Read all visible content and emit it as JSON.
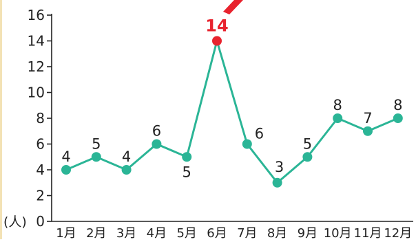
{
  "chart_data": {
    "type": "line",
    "categories": [
      "1月",
      "2月",
      "3月",
      "4月",
      "5月",
      "6月",
      "7月",
      "8月",
      "9月",
      "10月",
      "11月",
      "12月"
    ],
    "values": [
      4,
      5,
      4,
      6,
      5,
      14,
      6,
      3,
      5,
      8,
      7,
      8
    ],
    "data_labels": [
      "4",
      "5",
      "4",
      "6",
      "5",
      "14",
      "6",
      "3",
      "5",
      "8",
      "7",
      "8"
    ],
    "highlight_index": 5,
    "yticks": [
      0,
      2,
      4,
      6,
      8,
      10,
      12,
      14,
      16
    ],
    "ylim": [
      0,
      16
    ],
    "ylabel": "(人)",
    "title": "",
    "xlabel": "",
    "grid": false,
    "colors": {
      "line": "#2bb596",
      "highlight": "#e8232e",
      "text": "#222222",
      "axis": "#222222"
    }
  }
}
